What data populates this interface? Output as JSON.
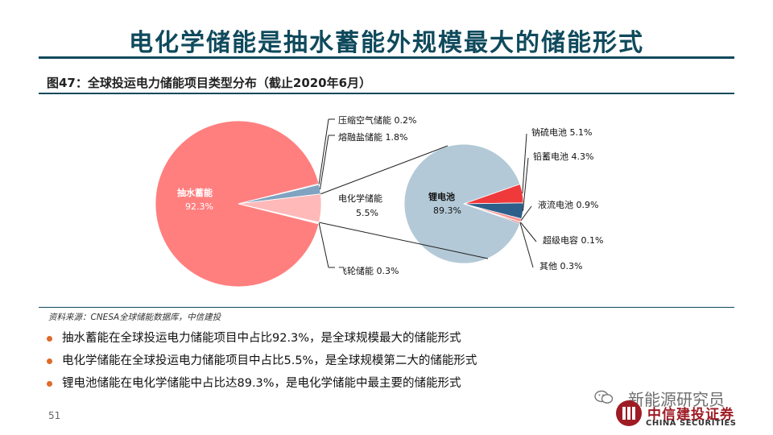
{
  "header": {
    "title": "电化学储能是抽水蓄能外规模最大的储能形式",
    "figure_caption": "图47：全球投运电力储能项目类型分布（截止2020年6月）"
  },
  "chart_data": {
    "type": "pie",
    "title": "",
    "pies": [
      {
        "slices": [
          {
            "label": "抽水蓄能",
            "value": 92.3,
            "value_text": "92.3%",
            "color": "#ff7f7f"
          },
          {
            "label": "压缩空气储能",
            "value": 0.2,
            "value_text": "0.2%",
            "color": "#b0c4d4"
          },
          {
            "label": "熔融盐储能",
            "value": 1.8,
            "value_text": "1.8%",
            "color": "#7fa3c0"
          },
          {
            "label": "电化学储能",
            "value": 5.5,
            "value_text": "5.5%",
            "color": "#ffb9b9"
          },
          {
            "label": "飞轮储能",
            "value": 0.3,
            "value_text": "0.3%",
            "color": "#ffffff"
          }
        ]
      },
      {
        "slices": [
          {
            "label": "锂电池",
            "value": 89.3,
            "value_text": "89.3%",
            "color": "#b3c9d7"
          },
          {
            "label": "钠硫电池",
            "value": 5.1,
            "value_text": "5.1%",
            "color": "#f0393b"
          },
          {
            "label": "铅蓄电池",
            "value": 4.3,
            "value_text": "4.3%",
            "color": "#2e5f8a"
          },
          {
            "label": "液流电池",
            "value": 0.9,
            "value_text": "0.9%",
            "color": "#ff9090"
          },
          {
            "label": "超级电容",
            "value": 0.1,
            "value_text": "0.1%",
            "color": "#dddddd"
          },
          {
            "label": "其他",
            "value": 0.3,
            "value_text": "0.3%",
            "color": "#c00000"
          }
        ]
      }
    ]
  },
  "source": "资料来源：CNESA全球储能数据库，中信建投",
  "bullets": [
    "抽水蓄能在全球投运电力储能项目中占比92.3%，是全球规模最大的储能形式",
    "电化学储能在全球投运电力储能项目中占比5.5%，是全球规模第二大的储能形式",
    "锂电池储能在电化学储能中占比达89.3%，是电化学储能中最主要的储能形式"
  ],
  "page_number": "51",
  "brand": {
    "wechat_text": "新能源研究员",
    "name_cn": "中信建投证券",
    "name_en": "CHINA SECURITIES"
  }
}
